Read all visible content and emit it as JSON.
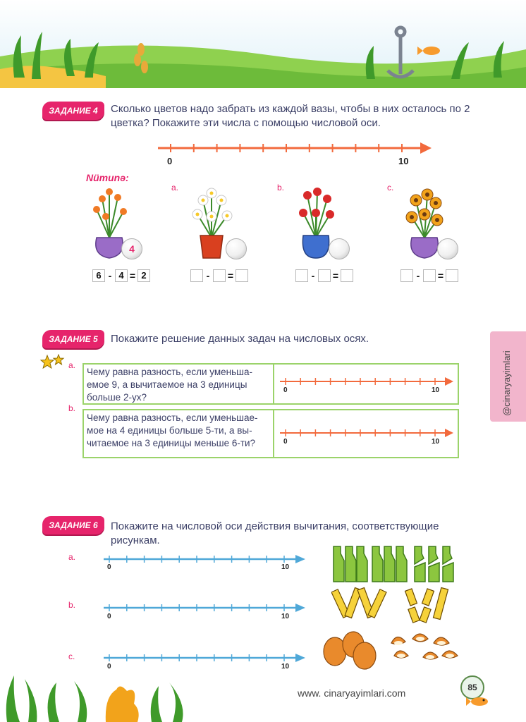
{
  "header": {
    "scene": "underwater-seaweed-banner"
  },
  "task4": {
    "badge": "ЗАДАНИЕ 4",
    "text": "Сколько цветов надо забрать из каждой вазы, чтобы в них осталось по 2 цветка? Покажите эти числа с помощью числовой оси.",
    "axis_start": "0",
    "axis_end": "10",
    "example_label": "Nümunə:",
    "example_ball": "4",
    "example_eq": {
      "a": "6",
      "op1": "-",
      "b": "4",
      "op2": "=",
      "c": "2"
    },
    "items": [
      {
        "label": "a.",
        "op1": "-",
        "op2": "="
      },
      {
        "label": "b.",
        "op1": "-",
        "op2": "="
      },
      {
        "label": "c.",
        "op1": "-",
        "op2": "="
      }
    ]
  },
  "task5": {
    "badge": "ЗАДАНИЕ 5",
    "text": "Покажите решение данных задач на числовых осях.",
    "a_label": "a.",
    "a_text": "Чему равна разность, если уменьша-емое 9, а вычитаемое на 3 единицы больше 2-ух?",
    "b_label": "b.",
    "b_text": "Чему равна разность, если уменьшае-мое на 4 единицы больше 5-ти, а вы-читаемое на 3 единицы меньше 6-ти?",
    "axis_start": "0",
    "axis_end": "10"
  },
  "task6": {
    "badge": "ЗАДАНИЕ 6",
    "text": "Покажите на числовой оси действия вычитания, соответствующие рисункам.",
    "rows": [
      {
        "label": "a.",
        "start": "0",
        "end": "10"
      },
      {
        "label": "b.",
        "start": "0",
        "end": "10"
      },
      {
        "label": "c.",
        "start": "0",
        "end": "10"
      }
    ]
  },
  "footer": {
    "website": "www. cinaryayimlari.com",
    "page": "85"
  },
  "sidetab": {
    "text": "@cinaryayimlari"
  },
  "colors": {
    "accent": "#e6246b",
    "axis_orange": "#f26a3d",
    "axis_blue": "#4fa8d8",
    "box_green": "#9bd36a"
  }
}
